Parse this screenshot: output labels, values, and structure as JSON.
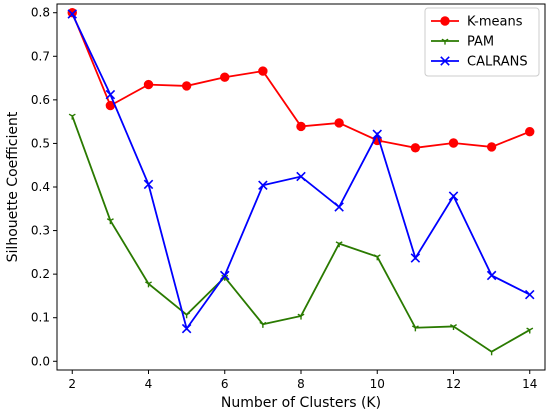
{
  "chart_data": {
    "type": "line",
    "xlabel": "Number of Clusters (K)",
    "ylabel": "Silhouette Coefficient",
    "xlim": [
      1.6,
      14.4
    ],
    "ylim": [
      -0.02,
      0.82
    ],
    "xticks": [
      2,
      4,
      6,
      8,
      10,
      12,
      14
    ],
    "yticks": [
      0.0,
      0.1,
      0.2,
      0.3,
      0.4,
      0.5,
      0.6,
      0.7,
      0.8
    ],
    "ytick_labels": [
      "0.0",
      "0.1",
      "0.2",
      "0.3",
      "0.4",
      "0.5",
      "0.6",
      "0.7",
      "0.8"
    ],
    "grid": false,
    "legend_position": "top-right",
    "x": [
      2,
      3,
      4,
      5,
      6,
      7,
      8,
      9,
      10,
      11,
      12,
      13,
      14
    ],
    "series": [
      {
        "name": "K-means",
        "color": "#ff0000",
        "marker": "circle",
        "values": [
          0.8,
          0.587,
          0.635,
          0.632,
          0.652,
          0.666,
          0.539,
          0.547,
          0.507,
          0.49,
          0.501,
          0.492,
          0.527
        ]
      },
      {
        "name": "PAM",
        "color": "#2a7a00",
        "marker": "tri-down",
        "values": [
          0.563,
          0.323,
          0.178,
          0.107,
          0.193,
          0.085,
          0.104,
          0.27,
          0.24,
          0.077,
          0.08,
          0.022,
          0.072
        ]
      },
      {
        "name": "CALRANS",
        "color": "#0000ff",
        "marker": "x",
        "values": [
          0.797,
          0.612,
          0.406,
          0.075,
          0.197,
          0.404,
          0.424,
          0.354,
          0.521,
          0.237,
          0.379,
          0.197,
          0.153
        ]
      }
    ]
  }
}
